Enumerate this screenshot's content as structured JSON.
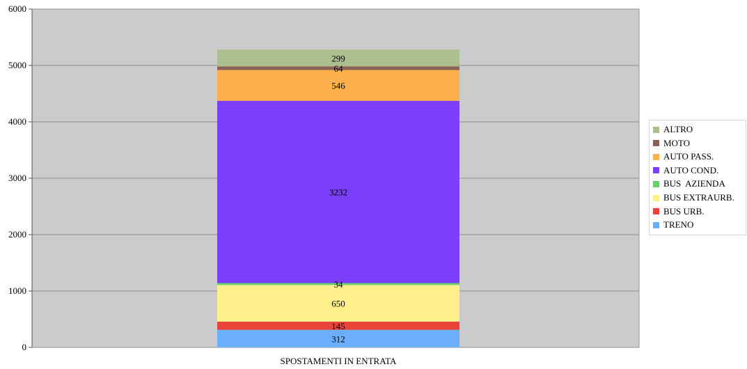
{
  "chart_data": {
    "type": "bar",
    "stacked": true,
    "categories": [
      "SPOSTAMENTI IN ENTRATA"
    ],
    "ylim": [
      0,
      6000
    ],
    "yticks": [
      0,
      1000,
      2000,
      3000,
      4000,
      5000,
      6000
    ],
    "grid": true,
    "legend_position": "right",
    "series": [
      {
        "name": "TRENO",
        "values": [
          312
        ],
        "color": "#6aaefc"
      },
      {
        "name": "BUS URB.",
        "values": [
          145
        ],
        "color": "#e8443a"
      },
      {
        "name": "BUS EXTRAURB.",
        "values": [
          650
        ],
        "color": "#fdf08b"
      },
      {
        "name": "BUS  AZIENDA",
        "values": [
          34
        ],
        "color": "#63d26b"
      },
      {
        "name": "AUTO COND.",
        "values": [
          3232
        ],
        "color": "#7b3efd"
      },
      {
        "name": "AUTO PASS.",
        "values": [
          546
        ],
        "color": "#fcb04e"
      },
      {
        "name": "MOTO",
        "values": [
          64
        ],
        "color": "#8d6157"
      },
      {
        "name": "ALTRO",
        "values": [
          299
        ],
        "color": "#adbe8e"
      }
    ]
  },
  "style": {
    "plot_background": "#cbcbcb",
    "gridline_color": "#8c8c8c"
  }
}
